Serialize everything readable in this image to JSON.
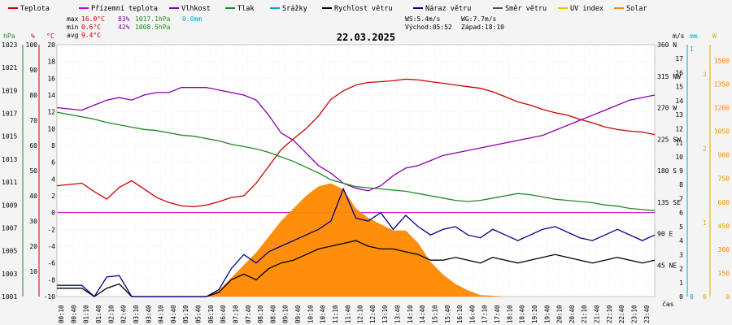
{
  "chart_data": {
    "type": "line",
    "title": "22.03.2025",
    "xlabel": "čas",
    "legend": [
      {
        "name": "Teplota",
        "color": "#cc0000"
      },
      {
        "name": "Přízemní teplota",
        "color": "#cc00cc"
      },
      {
        "name": "Vlhkost",
        "color": "#8800aa"
      },
      {
        "name": "Tlak",
        "color": "#228822"
      },
      {
        "name": "Srážky",
        "color": "#00aacc"
      },
      {
        "name": "Rychlost větru",
        "color": "#000000"
      },
      {
        "name": "Náraz větru",
        "color": "#000088"
      },
      {
        "name": "Směr větru",
        "color": "#555555"
      },
      {
        "name": "UV index",
        "color": "#ddcc00"
      },
      {
        "name": "Solar",
        "color": "#ff8800"
      }
    ],
    "stats": [
      {
        "label": "max",
        "temp": "16.0°C",
        "hum": "83%",
        "press": "1017.1hPa",
        "rain": "0.0mm"
      },
      {
        "label": "min",
        "temp": "0.6°C",
        "hum": "42%",
        "press": "1008.5hPa",
        "rain": ""
      },
      {
        "label": "avg",
        "temp": "9.4°C",
        "hum": "",
        "press": "",
        "rain": ""
      }
    ],
    "wind_info": {
      "ws": "WS:5.4m/s",
      "wg": "WG:7.7m/s",
      "sunrise": "Východ:05:52",
      "sunset": "Západ:18:10"
    },
    "axes": {
      "hpa": {
        "unit": "hPa",
        "color": "#228822",
        "ticks": [
          "1001",
          "1003",
          "1005",
          "1007",
          "1009",
          "1011",
          "1013",
          "1015",
          "1017",
          "1019",
          "1021",
          "1023"
        ]
      },
      "pct": {
        "unit": "%",
        "color": "#cc0000",
        "ticks": [
          "10",
          "20",
          "30",
          "40",
          "50",
          "60",
          "70",
          "80",
          "90",
          "100"
        ]
      },
      "c": {
        "unit": "°C",
        "color": "#cc0000",
        "ticks": [
          "-10",
          "-8",
          "-6",
          "-4",
          "-2",
          "0",
          "2",
          "4",
          "6",
          "8",
          "10",
          "12",
          "14",
          "16",
          "18",
          "20"
        ]
      },
      "dir": {
        "unit": "°",
        "ticks": [
          "45 NE",
          "90 E",
          "135 SE",
          "180 S",
          "225 SW",
          "270 W",
          "315 NW",
          "360 N"
        ]
      },
      "ms": {
        "unit": "m/s",
        "ticks": [
          "0",
          "1",
          "2",
          "3",
          "4",
          "5",
          "6",
          "7",
          "8",
          "9",
          "10",
          "11",
          "12",
          "13",
          "14",
          "15",
          "16",
          "17"
        ]
      },
      "mm": {
        "unit": "mm",
        "color": "#00aacc",
        "ticks": [
          "0",
          "1"
        ]
      },
      "uv": {
        "unit": "W",
        "color": "#ddaa00",
        "ticks": [
          "0",
          "1",
          "2",
          "3"
        ]
      },
      "w": {
        "color": "#ff8800",
        "ticks": [
          "0",
          "150",
          "300",
          "450",
          "600",
          "750",
          "900",
          "1050",
          "1200",
          "1350",
          "1500"
        ]
      }
    },
    "times": [
      "00:10",
      "00:40",
      "01:10",
      "01:40",
      "02:10",
      "02:40",
      "03:10",
      "03:40",
      "04:10",
      "04:40",
      "05:10",
      "05:40",
      "06:10",
      "06:40",
      "07:10",
      "07:40",
      "08:10",
      "08:40",
      "09:10",
      "09:40",
      "10:10",
      "10:40",
      "11:10",
      "11:40",
      "12:10",
      "12:40",
      "13:10",
      "13:40",
      "14:10",
      "14:40",
      "15:10",
      "15:40",
      "16:10",
      "16:40",
      "17:10",
      "17:40",
      "18:10",
      "18:40",
      "19:10",
      "19:40",
      "20:10",
      "20:40",
      "21:10",
      "21:40",
      "22:10",
      "22:40",
      "23:10",
      "23:40"
    ],
    "series": [
      {
        "name": "Teplota",
        "unit": "°C",
        "color": "#cc0000",
        "x": [
          0,
          1,
          1.5,
          2,
          2.5,
          3,
          3.5,
          4,
          4.5,
          5,
          5.5,
          6,
          6.5,
          7,
          7.5,
          8,
          8.5,
          9,
          9.5,
          10,
          10.5,
          11,
          11.5,
          12,
          12.5,
          13,
          13.5,
          14,
          14.5,
          15,
          15.5,
          16,
          16.5,
          17,
          17.5,
          18,
          18.5,
          19,
          19.5,
          20,
          20.5,
          21,
          21.5,
          22,
          22.5,
          23,
          23.5,
          24
        ],
        "y": [
          3.2,
          3.5,
          2.5,
          1.6,
          3.0,
          3.8,
          2.8,
          1.8,
          1.2,
          0.8,
          0.7,
          0.9,
          1.3,
          1.8,
          2.0,
          3.5,
          5.5,
          7.5,
          8.8,
          10.0,
          11.5,
          13.5,
          14.5,
          15.2,
          15.5,
          15.6,
          15.7,
          15.9,
          15.8,
          15.6,
          15.4,
          15.2,
          15.0,
          14.8,
          14.4,
          13.8,
          13.2,
          12.8,
          12.3,
          11.9,
          11.6,
          11.1,
          10.7,
          10.2,
          9.9,
          9.7,
          9.6,
          9.3
        ]
      },
      {
        "name": "Vlhkost",
        "unit": "%",
        "color": "#8800aa",
        "x": [
          0,
          1,
          1.5,
          2,
          2.5,
          3,
          3.5,
          4,
          4.5,
          5,
          5.5,
          6,
          6.5,
          7,
          7.5,
          8,
          8.5,
          9,
          9.5,
          10,
          10.5,
          11,
          11.5,
          12,
          12.5,
          13,
          13.5,
          14,
          14.5,
          15,
          15.5,
          16,
          16.5,
          17,
          17.5,
          18,
          18.5,
          19,
          19.5,
          20,
          20.5,
          21,
          21.5,
          22,
          22.5,
          23,
          23.5,
          24
        ],
        "y": [
          75,
          74,
          76,
          78,
          79,
          78,
          80,
          81,
          81,
          83,
          83,
          83,
          82,
          81,
          80,
          78,
          72,
          65,
          62,
          57,
          52,
          49,
          45,
          43,
          42,
          44,
          48,
          51,
          52,
          54,
          56,
          57,
          58,
          59,
          60,
          61,
          62,
          63,
          64,
          66,
          68,
          70,
          72,
          74,
          76,
          78,
          79,
          80
        ]
      },
      {
        "name": "Tlak",
        "unit": "hPa",
        "color": "#228822",
        "x": [
          0,
          1,
          1.5,
          2,
          2.5,
          3,
          3.5,
          4,
          4.5,
          5,
          5.5,
          6,
          6.5,
          7,
          7.5,
          8,
          8.5,
          9,
          9.5,
          10,
          10.5,
          11,
          11.5,
          12,
          12.5,
          13,
          13.5,
          14,
          14.5,
          15,
          15.5,
          16,
          16.5,
          17,
          17.5,
          18,
          18.5,
          19,
          19.5,
          20,
          20.5,
          21,
          21.5,
          22,
          22.5,
          23,
          23.5,
          24
        ],
        "y": [
          1017.1,
          1016.7,
          1016.5,
          1016.2,
          1016.0,
          1015.8,
          1015.6,
          1015.5,
          1015.3,
          1015.1,
          1015.0,
          1014.8,
          1014.6,
          1014.3,
          1014.1,
          1013.9,
          1013.6,
          1013.2,
          1012.8,
          1012.3,
          1011.8,
          1011.2,
          1010.9,
          1010.6,
          1010.5,
          1010.4,
          1010.3,
          1010.2,
          1010.0,
          1009.8,
          1009.6,
          1009.4,
          1009.3,
          1009.4,
          1009.6,
          1009.8,
          1010.0,
          1009.9,
          1009.7,
          1009.5,
          1009.4,
          1009.3,
          1009.2,
          1009.0,
          1008.9,
          1008.7,
          1008.6,
          1008.5
        ]
      },
      {
        "name": "Solar",
        "unit": "W",
        "color": "#ff8800",
        "x": [
          6,
          6.5,
          7,
          7.5,
          8,
          8.5,
          9,
          9.5,
          10,
          10.5,
          11,
          11.5,
          12,
          12.5,
          13,
          13.5,
          14,
          14.5,
          15,
          15.5,
          16,
          16.5,
          17,
          17.5,
          18
        ],
        "y": [
          0,
          40,
          120,
          200,
          280,
          380,
          480,
          560,
          640,
          700,
          720,
          680,
          560,
          500,
          460,
          420,
          420,
          340,
          220,
          140,
          80,
          40,
          10,
          5,
          0
        ]
      },
      {
        "name": "Rychlost větru",
        "unit": "m/s",
        "color": "#000000",
        "x": [
          0,
          1,
          1.5,
          2,
          2.5,
          3,
          3.5,
          4,
          4.5,
          5,
          5.5,
          6,
          6.5,
          7,
          7.5,
          8,
          8.5,
          9,
          9.5,
          10,
          10.5,
          11,
          11.5,
          12,
          12.5,
          13,
          13.5,
          14,
          14.5,
          15,
          15.5,
          16,
          16.5,
          17,
          17.5,
          18,
          18.5,
          19,
          19.5,
          20,
          20.5,
          21,
          21.5,
          22,
          22.5,
          23,
          23.5,
          24
        ],
        "y": [
          0.6,
          0.6,
          0,
          0.6,
          0.9,
          0,
          0,
          0,
          0,
          0,
          0,
          0,
          0.3,
          1.2,
          1.6,
          1.2,
          2.0,
          2.4,
          2.6,
          3.0,
          3.4,
          3.6,
          3.8,
          4.0,
          3.6,
          3.4,
          3.4,
          3.2,
          3.0,
          2.6,
          2.6,
          2.8,
          2.6,
          2.4,
          2.8,
          2.6,
          2.4,
          2.6,
          2.8,
          3.0,
          2.8,
          2.6,
          2.4,
          2.6,
          2.8,
          2.6,
          2.4,
          2.6
        ]
      },
      {
        "name": "Náraz větru",
        "unit": "m/s",
        "color": "#000088",
        "x": [
          0,
          1,
          1.5,
          2,
          2.5,
          3,
          3.5,
          4,
          4.5,
          5,
          5.5,
          6,
          6.5,
          7,
          7.5,
          8,
          8.5,
          9,
          9.5,
          10,
          10.5,
          11,
          11.5,
          12,
          12.5,
          13,
          13.5,
          14,
          14.5,
          15,
          15.5,
          16,
          16.5,
          17,
          17.5,
          18,
          18.5,
          19,
          19.5,
          20,
          20.5,
          21,
          21.5,
          22,
          22.5,
          23,
          23.5,
          24
        ],
        "y": [
          0.8,
          0.8,
          0,
          1.4,
          1.5,
          0,
          0,
          0,
          0,
          0,
          0,
          0,
          0.5,
          2.0,
          3.0,
          2.4,
          3.2,
          3.6,
          4.0,
          4.4,
          4.8,
          5.4,
          7.7,
          5.6,
          5.4,
          6.0,
          4.8,
          5.8,
          5.0,
          4.4,
          4.8,
          5.0,
          4.4,
          4.2,
          4.8,
          4.4,
          4.0,
          4.4,
          4.8,
          5.0,
          4.6,
          4.2,
          4.0,
          4.4,
          4.8,
          4.4,
          4.0,
          4.4
        ]
      }
    ]
  }
}
